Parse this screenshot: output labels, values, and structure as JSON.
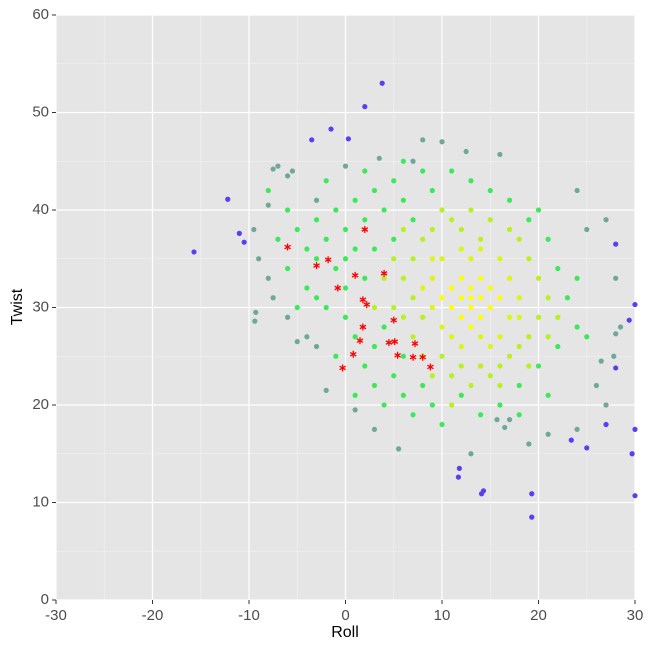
{
  "chart_data": {
    "type": "scatter",
    "xlabel": "Roll",
    "ylabel": "Twist",
    "xlim": [
      -30,
      30
    ],
    "ylim": [
      0,
      60
    ],
    "xticks": [
      -30,
      -20,
      -10,
      0,
      10,
      20,
      30
    ],
    "yticks": [
      0,
      10,
      20,
      30,
      40,
      50,
      60
    ],
    "grid": true,
    "background": "#e5e5e5",
    "series": [
      {
        "color": "#6fa898",
        "marker": "circle",
        "x": [
          -7,
          -7.5,
          -6,
          -5.5,
          -8,
          -9.5,
          -9,
          -9.3,
          -9.4,
          -7.5,
          -8,
          -5,
          -3,
          10,
          16,
          12.5,
          8,
          7,
          3.5,
          0,
          24,
          27,
          25,
          28,
          28.5,
          28,
          27.8,
          26.5,
          26,
          27,
          24,
          21,
          19,
          17,
          16.5,
          15.7,
          13,
          5.5,
          3,
          1,
          -2,
          -4,
          -6,
          -3
        ],
        "values": [
          44.5,
          44.2,
          43.5,
          44,
          40.5,
          38,
          35,
          29.5,
          28.6,
          31,
          33,
          26.5,
          26,
          47,
          45.7,
          46,
          47.2,
          45,
          45.3,
          44.5,
          42,
          39,
          38,
          33,
          28,
          27.3,
          25,
          24.5,
          22,
          20,
          17.5,
          17,
          16,
          18.5,
          17.7,
          18.5,
          15,
          15.5,
          17.5,
          19.5,
          21.5,
          27,
          29,
          41
        ]
      },
      {
        "color": "#3de85a",
        "marker": "circle",
        "x": [
          -5,
          -4,
          -3,
          -2,
          -1,
          0,
          1,
          2,
          3,
          4,
          5,
          6,
          7,
          -6,
          -4,
          -2,
          0,
          1,
          2,
          3,
          4,
          5,
          6,
          7,
          8,
          9,
          10,
          12,
          14,
          16,
          18,
          20,
          22,
          24,
          23,
          22,
          21,
          19,
          17,
          15,
          13,
          11,
          9,
          -1,
          -3,
          -5,
          0,
          3,
          5,
          -7,
          -2,
          2,
          6,
          -1,
          1,
          18,
          21,
          25,
          24,
          20,
          -8,
          -6,
          0,
          2,
          4,
          3,
          6,
          1,
          -3,
          8
        ],
        "values": [
          38,
          36,
          39,
          37,
          40,
          38,
          41,
          39,
          42,
          40,
          43,
          41,
          39,
          34,
          32,
          30,
          29,
          27,
          24,
          22,
          20,
          23,
          21,
          19,
          22,
          20,
          18,
          21,
          19,
          20,
          22,
          24,
          26,
          28,
          31,
          34,
          37,
          39,
          41,
          42,
          43,
          44,
          42,
          34,
          31,
          30,
          32,
          36,
          37,
          37,
          43,
          44,
          45,
          25,
          21,
          19,
          21,
          27,
          33,
          40,
          42,
          40,
          35,
          33,
          28,
          26,
          25,
          36,
          35,
          44
        ]
      },
      {
        "color": "#b8f020",
        "marker": "circle",
        "x": [
          5,
          6,
          7,
          6,
          7,
          8,
          9,
          10,
          11,
          12,
          13,
          14,
          15,
          16,
          17,
          18,
          19,
          20,
          21,
          20,
          19,
          18,
          17,
          15,
          13,
          11,
          9,
          8,
          7,
          4,
          5,
          8,
          19,
          22,
          21,
          16,
          10,
          12,
          6,
          3,
          11,
          14
        ],
        "values": [
          35,
          33,
          31,
          29,
          27,
          25,
          23,
          25,
          23,
          24,
          22,
          24,
          23,
          24,
          25,
          26,
          27,
          29,
          31,
          33,
          35,
          37,
          38,
          39,
          40,
          39,
          38,
          37,
          35,
          33,
          30,
          29,
          24,
          29,
          27,
          22,
          40,
          38,
          38,
          30,
          20,
          37
        ]
      },
      {
        "color": "#ddf510",
        "marker": "circle",
        "x": [
          9,
          9,
          10,
          11,
          12,
          14,
          16,
          17,
          18,
          17,
          16,
          14,
          12,
          10,
          8,
          9,
          15,
          18,
          13
        ],
        "values": [
          33,
          30,
          28,
          27,
          26,
          27,
          27,
          29,
          31,
          33,
          35,
          36,
          36,
          35,
          32,
          35,
          26,
          29,
          35
        ]
      },
      {
        "color": "#ffff00",
        "marker": "circle",
        "x": [
          11,
          12,
          13,
          14,
          13,
          12,
          14,
          12,
          15,
          11,
          13,
          15,
          14,
          10,
          16,
          13
        ],
        "values": [
          32,
          31,
          30,
          31,
          32,
          33,
          29,
          29,
          32,
          30,
          28,
          30,
          33,
          31,
          31,
          31
        ]
      },
      {
        "color": "#5a3ef0",
        "marker": "circle",
        "x": [
          3.8,
          2,
          -1.5,
          -3.5,
          0.3,
          -15.7,
          -12.2,
          -11,
          -10.5,
          19.3,
          19.3,
          14.3,
          14.1,
          30,
          30,
          30,
          29.7,
          28,
          27,
          25,
          23.4,
          29.4,
          28,
          11.8,
          11.7
        ],
        "values": [
          53,
          50.6,
          48.3,
          47.2,
          47.3,
          35.7,
          41.1,
          37.6,
          36.7,
          8.5,
          10.9,
          11.2,
          10.9,
          10.7,
          30.3,
          17.5,
          15,
          23.8,
          18,
          15.6,
          16.4,
          28.7,
          36.5,
          13.5,
          12.6
        ]
      },
      {
        "color": "#ff0000",
        "marker": "asterisk",
        "x": [
          -6,
          -3,
          -1.8,
          2,
          -0.8,
          1,
          4,
          1.8,
          2.2,
          5,
          1.8,
          1.5,
          4.5,
          5.1,
          7.2,
          0.8,
          5.4,
          7,
          8,
          -0.3,
          8.8
        ],
        "values": [
          36.2,
          34.3,
          34.9,
          38,
          32,
          33.3,
          33.5,
          30.8,
          30.3,
          28.7,
          28,
          26.6,
          26.4,
          26.5,
          26.3,
          25.2,
          25.1,
          24.9,
          24.9,
          23.8,
          23.9
        ]
      }
    ]
  }
}
